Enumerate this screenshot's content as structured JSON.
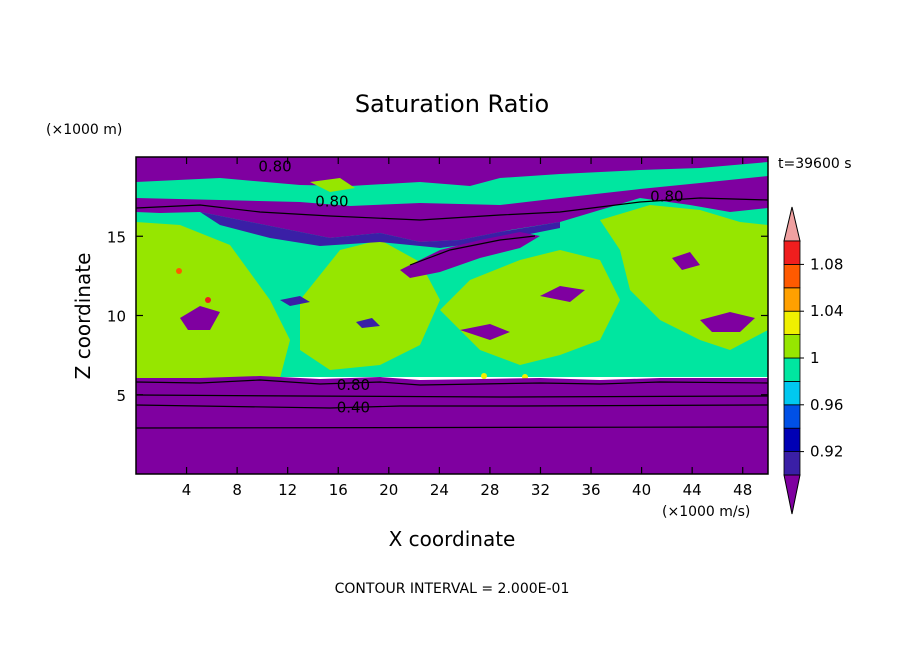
{
  "chart_data": {
    "type": "heatmap",
    "title": "Saturation Ratio",
    "xlabel": "X coordinate",
    "ylabel": "Z coordinate",
    "x_unit": "(×1000 m/s)",
    "y_unit": "(×1000 m)",
    "time_label": "t=39600 s",
    "footer": "CONTOUR INTERVAL = 2.000E-01",
    "xlim": [
      0,
      50
    ],
    "ylim": [
      0,
      20
    ],
    "x_ticks": [
      4,
      8,
      12,
      16,
      20,
      24,
      28,
      32,
      36,
      40,
      44,
      48
    ],
    "y_ticks": [
      5,
      10,
      15
    ],
    "colorbar": {
      "levels": [
        0.92,
        0.94,
        0.96,
        0.98,
        1.0,
        1.02,
        1.04,
        1.06,
        1.08,
        1.1
      ],
      "labeled_levels": [
        "0.92",
        "0.96",
        "1",
        "1.04",
        "1.08"
      ],
      "colors": [
        "#7f00a0",
        "#3a1fa6",
        "#0000b4",
        "#0050e6",
        "#00c8f0",
        "#00e6a0",
        "#96e600",
        "#f0f000",
        "#ffa000",
        "#ff5a00",
        "#f01e1e",
        "#f0a0a0"
      ]
    },
    "contour_labels": [
      {
        "text": "0.80",
        "x": 11,
        "z": 19.4
      },
      {
        "text": "0.80",
        "x": 15.5,
        "z": 17.2
      },
      {
        "text": "0.80",
        "x": 42,
        "z": 17.5
      },
      {
        "text": "0.80",
        "x": 17.2,
        "z": 5.6
      },
      {
        "text": "0.40",
        "x": 17.2,
        "z": 4.2
      }
    ]
  }
}
